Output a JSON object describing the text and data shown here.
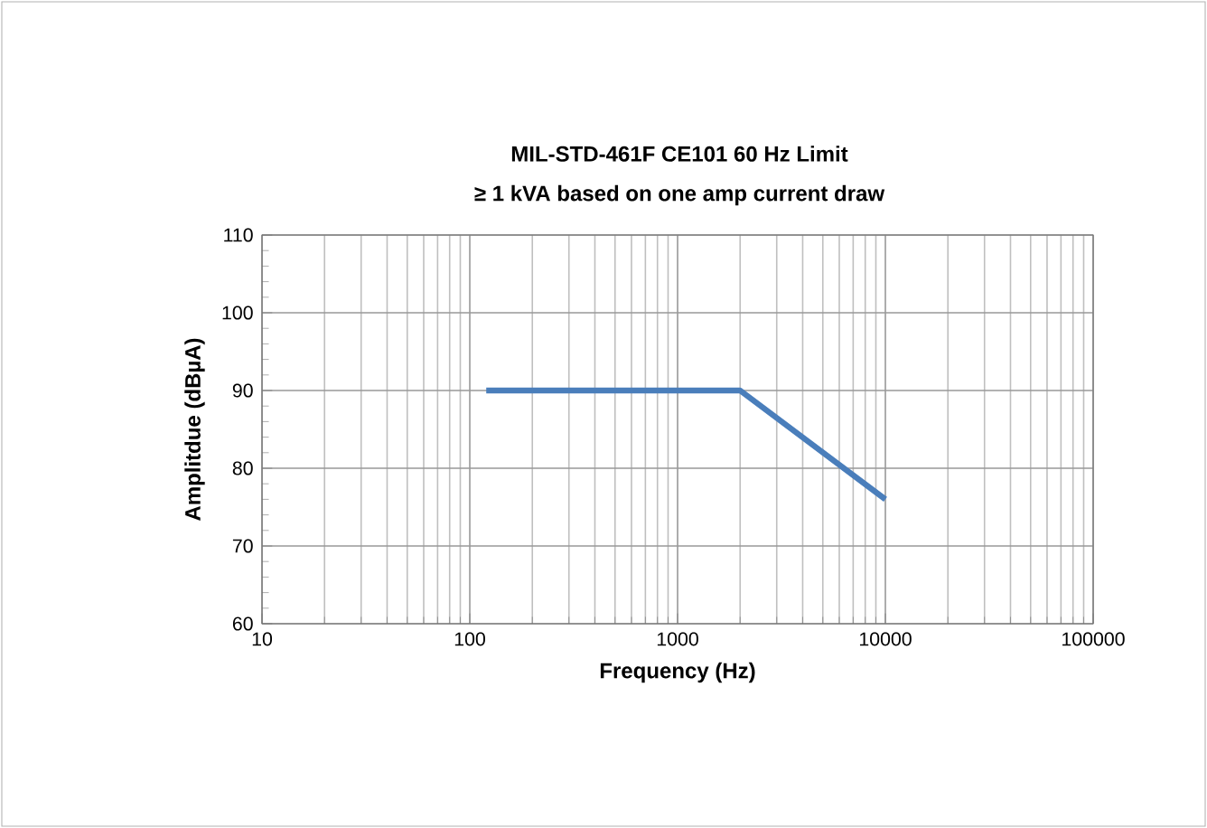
{
  "chart_data": {
    "type": "line",
    "title": "MIL-STD-461F CE101 60 Hz Limit",
    "subtitle": "≥ 1 kVA based on one amp current draw",
    "xlabel": "Frequency (Hz)",
    "ylabel": "Amplitdue (dBµA)",
    "log": "x",
    "grid": true,
    "marker": "none",
    "line_style": "solid",
    "xlim": [
      10,
      100000
    ],
    "xticks": [
      10,
      100,
      1000,
      10000,
      100000
    ],
    "ylim": [
      60,
      110
    ],
    "yticks": [
      60,
      70,
      80,
      90,
      100,
      110
    ],
    "series": [
      {
        "color": "#4a7ebb",
        "x": [
          120,
          2000,
          10000
        ],
        "values": [
          90,
          90,
          76
        ]
      }
    ]
  }
}
